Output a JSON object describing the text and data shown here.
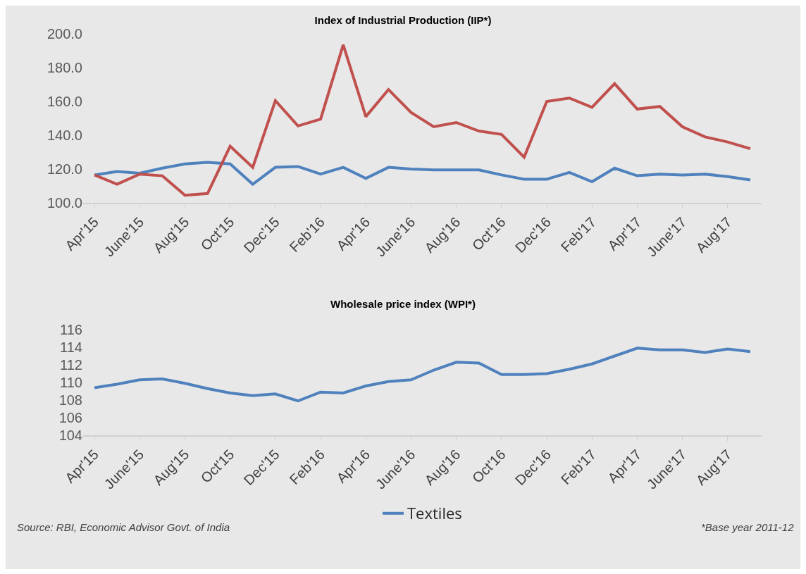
{
  "chart_data": [
    {
      "type": "line",
      "title": "Index of Industrial Production (IIP*)",
      "categories": [
        "Apr'15",
        null,
        "June'15",
        null,
        "Aug'15",
        null,
        "Oct'15",
        null,
        "Dec'15",
        null,
        "Feb'16",
        null,
        "Apr'16",
        null,
        "June'16",
        null,
        "Aug'16",
        null,
        "Oct'16",
        null,
        "Dec'16",
        null,
        "Feb'17",
        null,
        "Apr'17",
        null,
        "June'17",
        null,
        "Aug'17",
        null
      ],
      "series": [
        {
          "color": "#4f81bd",
          "values": [
            116.5,
            118.5,
            117.5,
            120.5,
            123,
            124,
            123,
            111,
            121,
            121.5,
            117,
            121,
            114.5,
            121,
            120,
            119.5,
            119.5,
            119.5,
            116.5,
            114,
            114,
            118,
            112.5,
            120.5,
            116,
            117,
            116.5,
            117,
            115.5,
            113.5
          ]
        },
        {
          "color": "#c0504d",
          "values": [
            116.5,
            111,
            117,
            116,
            104.5,
            105.5,
            133.5,
            121,
            160.5,
            145.5,
            149.5,
            193.5,
            151,
            167,
            153.5,
            145,
            147.5,
            142.5,
            140.5,
            127,
            160,
            162,
            156.5,
            170.5,
            155.5,
            157,
            145,
            139,
            136,
            132
          ]
        }
      ],
      "ylim": [
        100,
        200
      ],
      "yticks": [
        {
          "value": 100,
          "label": "100.0"
        },
        {
          "value": 120,
          "label": "120.0"
        },
        {
          "value": 140,
          "label": "140.0"
        },
        {
          "value": 160,
          "label": "160.0"
        },
        {
          "value": 180,
          "label": "180.0"
        },
        {
          "value": 200,
          "label": "200.0"
        }
      ],
      "grid": false,
      "legend": false,
      "marker": "none",
      "line_style": "solid"
    },
    {
      "type": "line",
      "title": "Wholesale price index (WPI*)",
      "categories": [
        "Apr'15",
        null,
        "June'15",
        null,
        "Aug'15",
        null,
        "Oct'15",
        null,
        "Dec'15",
        null,
        "Feb'16",
        null,
        "Apr'16",
        null,
        "June'16",
        null,
        "Aug'16",
        null,
        "Oct'16",
        null,
        "Dec'16",
        null,
        "Feb'17",
        null,
        "Apr'17",
        null,
        "June'17",
        null,
        "Aug'17",
        null
      ],
      "series": [
        {
          "name": "Textiles",
          "color": "#4f81bd",
          "values": [
            109.4,
            109.8,
            110.3,
            110.4,
            109.9,
            109.3,
            108.8,
            108.5,
            108.7,
            107.9,
            108.9,
            108.8,
            109.6,
            110.1,
            110.3,
            111.4,
            112.3,
            112.2,
            110.9,
            110.9,
            111.0,
            111.5,
            112.1,
            113.0,
            113.9,
            113.7,
            113.7,
            113.4,
            113.8,
            113.5
          ]
        }
      ],
      "ylim": [
        104,
        116
      ],
      "yticks": [
        104,
        106,
        108,
        110,
        112,
        114,
        116
      ],
      "grid": false,
      "legend": "bottom",
      "marker": "none",
      "line_style": "solid",
      "annotations": [
        "Source: RBI, Economic Advisor Govt. of India",
        "*Base year 2011-12"
      ]
    }
  ]
}
